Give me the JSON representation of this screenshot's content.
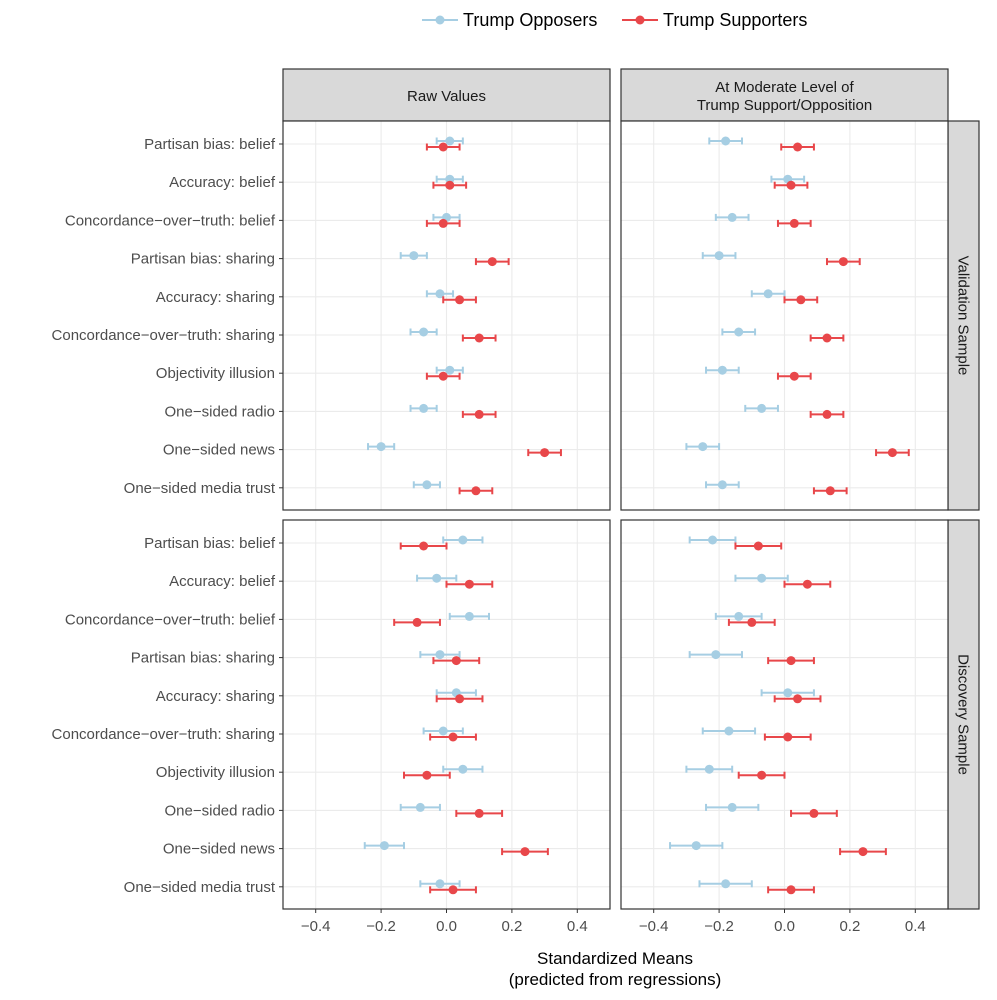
{
  "chart_data": {
    "type": "dot-errorbar",
    "xlabel_line1": "Standardized Means",
    "xlabel_line2": "(predicted from regressions)",
    "xlim": [
      -0.5,
      0.5
    ],
    "xticks": [
      "−0.4",
      "−0.2",
      "0.0",
      "0.2",
      "0.4"
    ],
    "xtick_values": [
      -0.4,
      -0.2,
      0.0,
      0.2,
      0.4
    ],
    "legend": [
      {
        "name": "Trump Opposers",
        "color": "#a6cee3"
      },
      {
        "name": "Trump Supporters",
        "color": "#e8474a"
      }
    ],
    "columns": [
      {
        "label_line1": "Raw Values",
        "label_line2": ""
      },
      {
        "label_line1": "At Moderate Level of",
        "label_line2": "Trump Support/Opposition"
      }
    ],
    "rows": [
      {
        "label": "Validation Sample"
      },
      {
        "label": "Discovery Sample"
      }
    ],
    "categories": [
      "Partisan bias: belief",
      "Accuracy: belief",
      "Concordance−over−truth: belief",
      "Partisan bias: sharing",
      "Accuracy: sharing",
      "Concordance−over−truth: sharing",
      "Objectivity illusion",
      "One−sided radio",
      "One−sided news",
      "One−sided media trust"
    ],
    "panels": [
      {
        "column": "Raw Values",
        "row": "Validation Sample",
        "opposers": [
          [
            0.01,
            -0.03,
            0.05
          ],
          [
            0.01,
            -0.03,
            0.05
          ],
          [
            0.0,
            -0.04,
            0.04
          ],
          [
            -0.1,
            -0.14,
            -0.06
          ],
          [
            -0.02,
            -0.06,
            0.02
          ],
          [
            -0.07,
            -0.11,
            -0.03
          ],
          [
            0.01,
            -0.03,
            0.05
          ],
          [
            -0.07,
            -0.11,
            -0.03
          ],
          [
            -0.2,
            -0.24,
            -0.16
          ],
          [
            -0.06,
            -0.1,
            -0.02
          ]
        ],
        "supporters": [
          [
            -0.01,
            -0.06,
            0.04
          ],
          [
            0.01,
            -0.04,
            0.06
          ],
          [
            -0.01,
            -0.06,
            0.04
          ],
          [
            0.14,
            0.09,
            0.19
          ],
          [
            0.04,
            -0.01,
            0.09
          ],
          [
            0.1,
            0.05,
            0.15
          ],
          [
            -0.01,
            -0.06,
            0.04
          ],
          [
            0.1,
            0.05,
            0.15
          ],
          [
            0.3,
            0.25,
            0.35
          ],
          [
            0.09,
            0.04,
            0.14
          ]
        ]
      },
      {
        "column": "At Moderate Level of Trump Support/Opposition",
        "row": "Validation Sample",
        "opposers": [
          [
            -0.18,
            -0.23,
            -0.13
          ],
          [
            0.01,
            -0.04,
            0.06
          ],
          [
            -0.16,
            -0.21,
            -0.11
          ],
          [
            -0.2,
            -0.25,
            -0.15
          ],
          [
            -0.05,
            -0.1,
            0.0
          ],
          [
            -0.14,
            -0.19,
            -0.09
          ],
          [
            -0.19,
            -0.24,
            -0.14
          ],
          [
            -0.07,
            -0.12,
            -0.02
          ],
          [
            -0.25,
            -0.3,
            -0.2
          ],
          [
            -0.19,
            -0.24,
            -0.14
          ]
        ],
        "supporters": [
          [
            0.04,
            -0.01,
            0.09
          ],
          [
            0.02,
            -0.03,
            0.07
          ],
          [
            0.03,
            -0.02,
            0.08
          ],
          [
            0.18,
            0.13,
            0.23
          ],
          [
            0.05,
            0.0,
            0.1
          ],
          [
            0.13,
            0.08,
            0.18
          ],
          [
            0.03,
            -0.02,
            0.08
          ],
          [
            0.13,
            0.08,
            0.18
          ],
          [
            0.33,
            0.28,
            0.38
          ],
          [
            0.14,
            0.09,
            0.19
          ]
        ]
      },
      {
        "column": "Raw Values",
        "row": "Discovery Sample",
        "opposers": [
          [
            0.05,
            -0.01,
            0.11
          ],
          [
            -0.03,
            -0.09,
            0.03
          ],
          [
            0.07,
            0.01,
            0.13
          ],
          [
            -0.02,
            -0.08,
            0.04
          ],
          [
            0.03,
            -0.03,
            0.09
          ],
          [
            -0.01,
            -0.07,
            0.05
          ],
          [
            0.05,
            -0.01,
            0.11
          ],
          [
            -0.08,
            -0.14,
            -0.02
          ],
          [
            -0.19,
            -0.25,
            -0.13
          ],
          [
            -0.02,
            -0.08,
            0.04
          ]
        ],
        "supporters": [
          [
            -0.07,
            -0.14,
            0.0
          ],
          [
            0.07,
            0.0,
            0.14
          ],
          [
            -0.09,
            -0.16,
            -0.02
          ],
          [
            0.03,
            -0.04,
            0.1
          ],
          [
            0.04,
            -0.03,
            0.11
          ],
          [
            0.02,
            -0.05,
            0.09
          ],
          [
            -0.06,
            -0.13,
            0.01
          ],
          [
            0.1,
            0.03,
            0.17
          ],
          [
            0.24,
            0.17,
            0.31
          ],
          [
            0.02,
            -0.05,
            0.09
          ]
        ]
      },
      {
        "column": "At Moderate Level of Trump Support/Opposition",
        "row": "Discovery Sample",
        "opposers": [
          [
            -0.22,
            -0.29,
            -0.15
          ],
          [
            -0.07,
            -0.15,
            0.01
          ],
          [
            -0.14,
            -0.21,
            -0.07
          ],
          [
            -0.21,
            -0.29,
            -0.13
          ],
          [
            0.01,
            -0.07,
            0.09
          ],
          [
            -0.17,
            -0.25,
            -0.09
          ],
          [
            -0.23,
            -0.3,
            -0.16
          ],
          [
            -0.16,
            -0.24,
            -0.08
          ],
          [
            -0.27,
            -0.35,
            -0.19
          ],
          [
            -0.18,
            -0.26,
            -0.1
          ]
        ],
        "supporters": [
          [
            -0.08,
            -0.15,
            -0.01
          ],
          [
            0.07,
            0.0,
            0.14
          ],
          [
            -0.1,
            -0.17,
            -0.03
          ],
          [
            0.02,
            -0.05,
            0.09
          ],
          [
            0.04,
            -0.03,
            0.11
          ],
          [
            0.01,
            -0.06,
            0.08
          ],
          [
            -0.07,
            -0.14,
            0.0
          ],
          [
            0.09,
            0.02,
            0.16
          ],
          [
            0.24,
            0.17,
            0.31
          ],
          [
            0.02,
            -0.05,
            0.09
          ]
        ]
      }
    ]
  }
}
